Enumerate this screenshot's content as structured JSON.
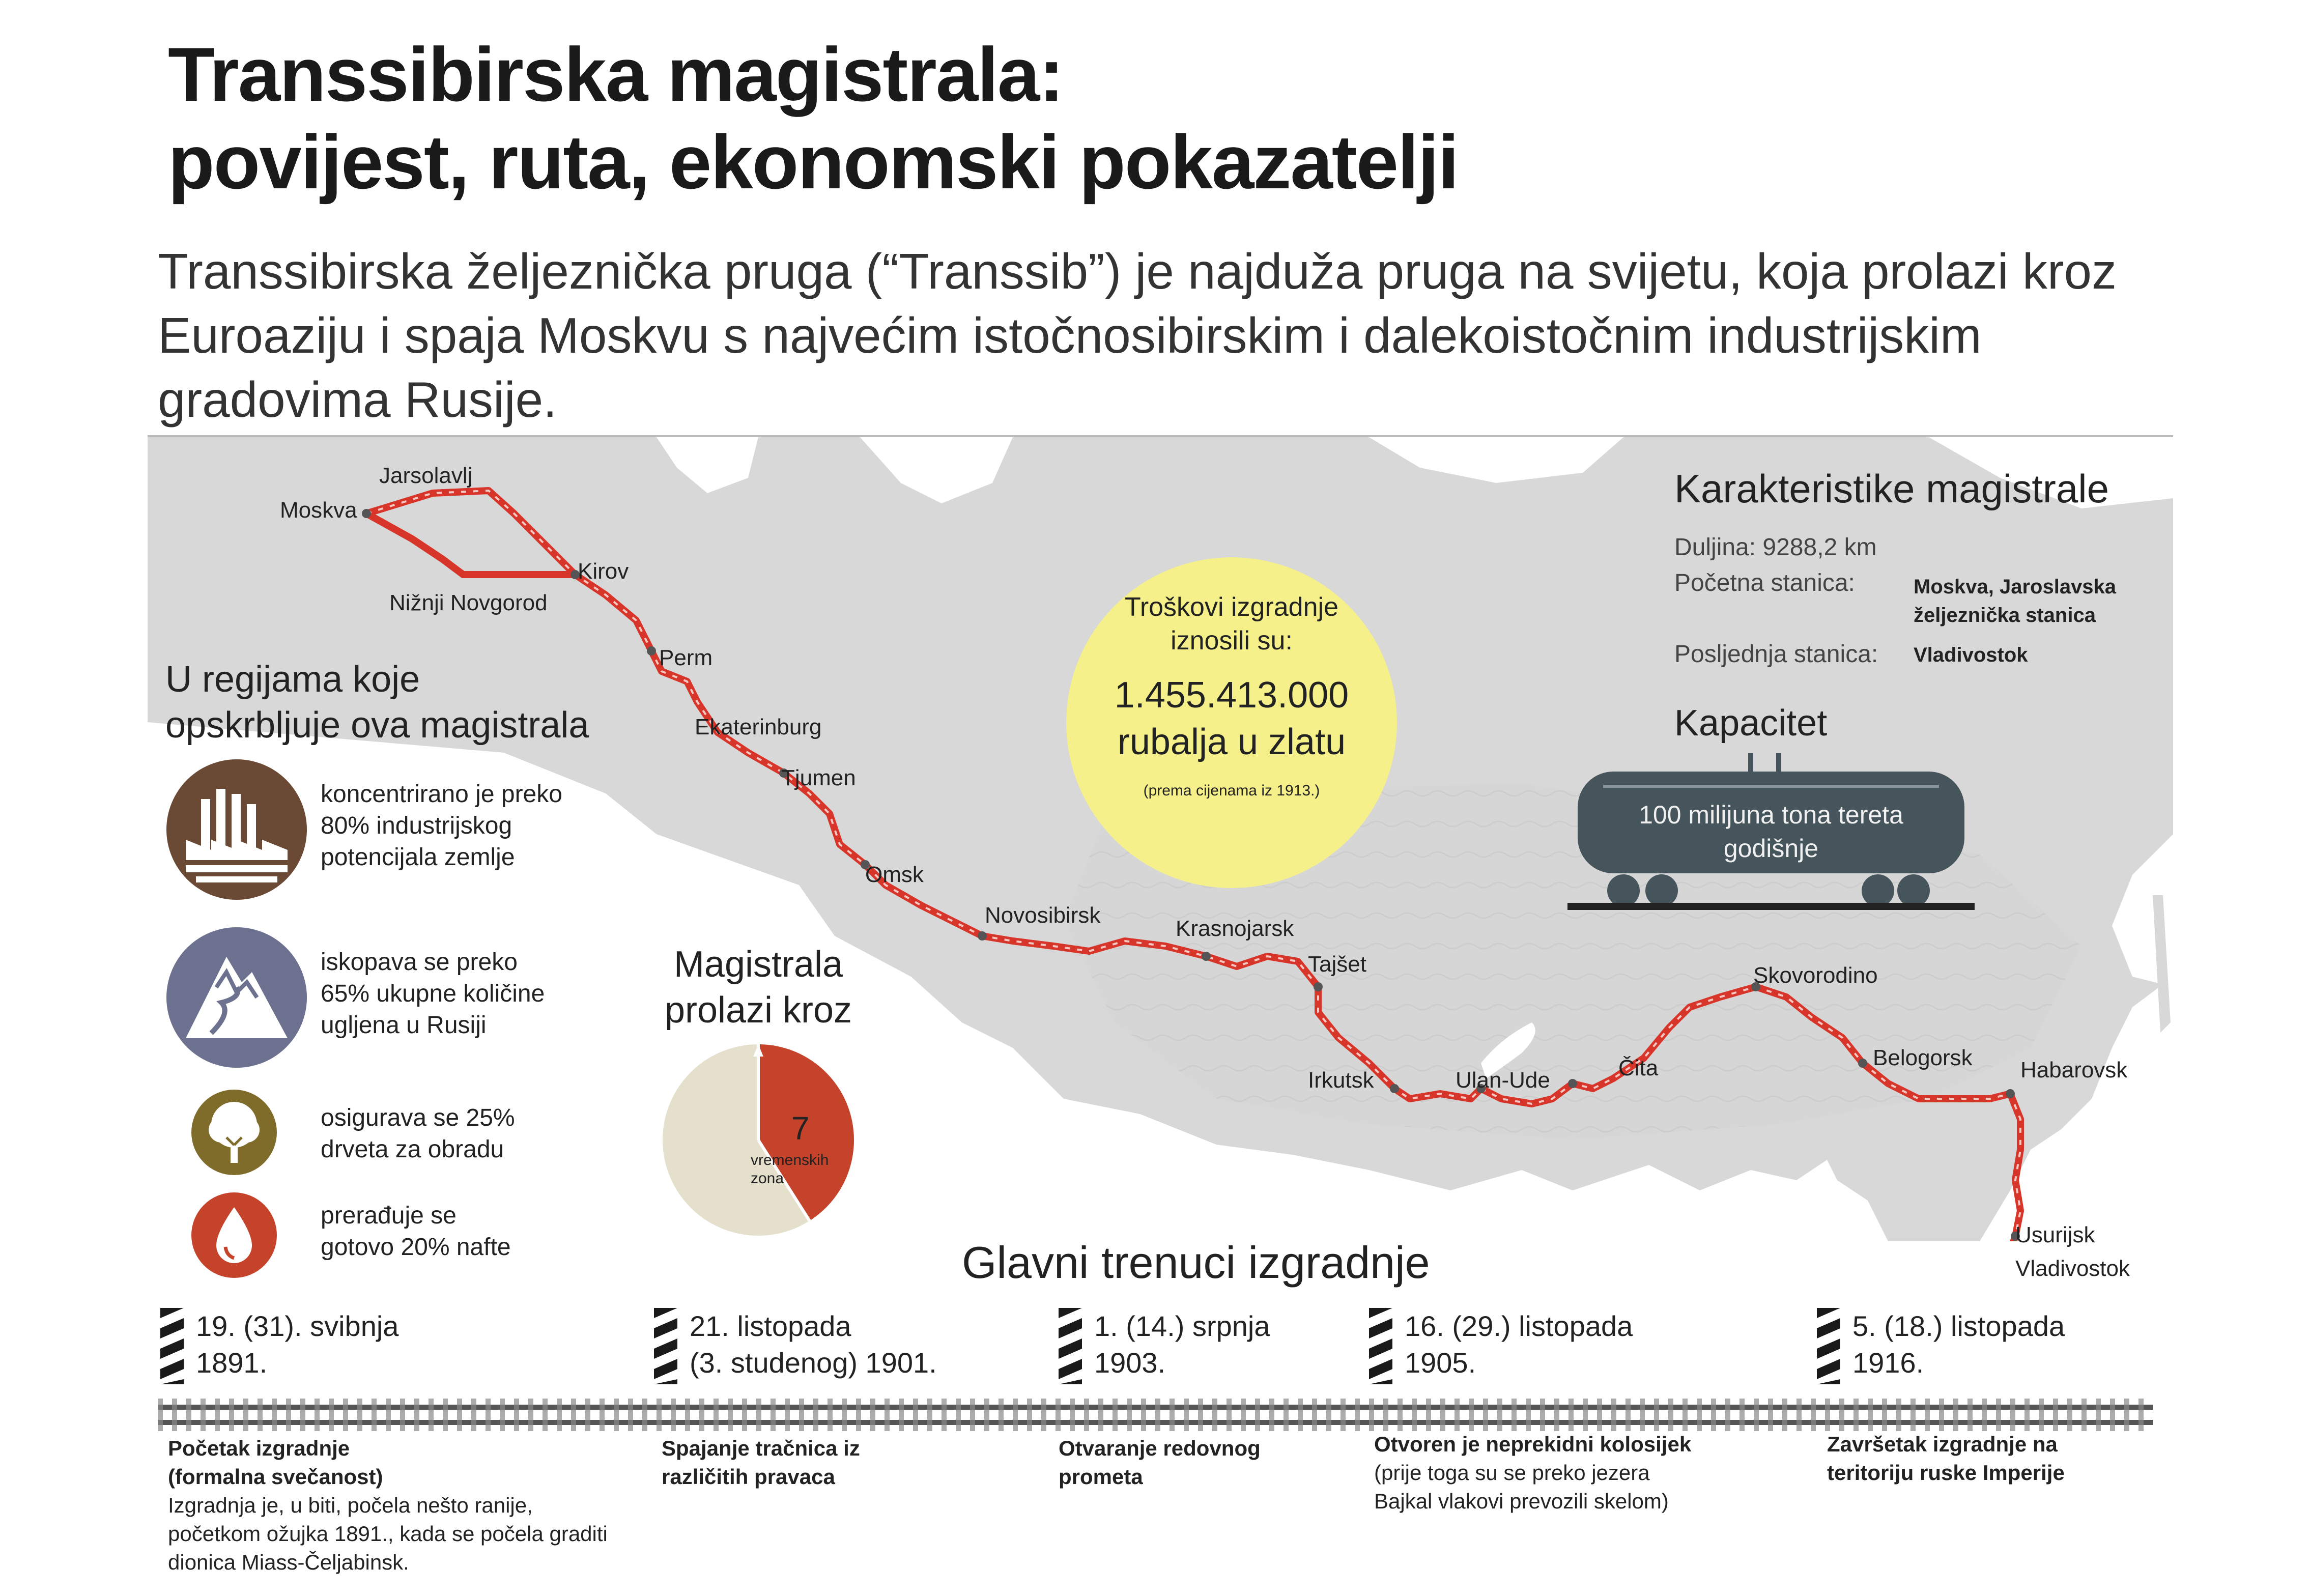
{
  "title": {
    "line1": "Transsibirska magistrala:",
    "line2": "povijest, ruta, ekonomski pokazatelji"
  },
  "intro": "Transsibirska željeznička pruga (“Transsib”) je najduža pruga na svijetu, koja prolazi kroz Euroaziju i spaja Moskvu s najvećim istočnosibirskim i dalekoistočnim industrijskim gradovima Rusije.",
  "cities": {
    "moskva": "Moskva",
    "jarsolavlj": "Jarsolavlj",
    "nizhni": "Nižnji Novgorod",
    "kirov": "Kirov",
    "perm": "Perm",
    "ekaterinburg": "Ekaterinburg",
    "tjumen": "Tjumen",
    "omsk": "Omsk",
    "novosibirsk": "Novosibirsk",
    "krasnojarsk": "Krasnojarsk",
    "tajset": "Tajšet",
    "irkutsk": "Irkutsk",
    "ulanude": "Ulan-Ude",
    "cita": "Čita",
    "skovorodino": "Skovorodino",
    "belogorsk": "Belogorsk",
    "habarovsk": "Habarovsk",
    "usurijsk": "Usurijsk",
    "vladivostok": "Vladivostok"
  },
  "regions": {
    "title_line1": "U regijama koje",
    "title_line2": "opskrbljuje ova magistrala",
    "items": [
      {
        "icon": "factory-icon",
        "color": "#6b4a35",
        "lines": [
          "koncentrirano je preko",
          "80% industrijskog",
          "potencijala zemlje"
        ]
      },
      {
        "icon": "mountain-icon",
        "color": "#6d7190",
        "lines": [
          "iskopava se preko",
          "65% ukupne količine",
          "ugljena u Rusiji"
        ]
      },
      {
        "icon": "tree-icon",
        "color": "#7f6c2a",
        "lines": [
          "osigurava se 25%",
          "drveta za obradu"
        ]
      },
      {
        "icon": "oil-drop-icon",
        "color": "#c4432a",
        "lines": [
          "prerađuje se",
          "gotovo 20% nafte"
        ]
      }
    ]
  },
  "cost": {
    "line1": "Troškovi izgradnje",
    "line2": "iznosili su:",
    "amount": "1.455.413.000",
    "currency": "rubalja u zlatu",
    "note": "(prema cijenama iz 1913.)",
    "color": "#f5f08a"
  },
  "timezones": {
    "title_line1": "Magistrala",
    "title_line2": "prolazi kroz",
    "value": "7",
    "label_line1": "vremenskih",
    "label_line2": "zona",
    "color_main": "#c4432a",
    "color_rest": "#e4e0cc"
  },
  "characteristics": {
    "title": "Karakteristike magistrale",
    "length_label": "Duljina: 9288,2 km",
    "start_label": "Početna stanica:",
    "start_value_line1": "Moskva, Jaroslavska",
    "start_value_line2": "željeznička stanica",
    "end_label": "Posljednja stanica:",
    "end_value": "Vladivostok"
  },
  "capacity": {
    "title": "Kapacitet",
    "line1": "100 milijuna tona tereta",
    "line2": "godišnje",
    "tank_color": "#46545c"
  },
  "milestones": {
    "title": "Glavni trenuci izgradnje",
    "items": [
      {
        "date_line1": "19. (31). svibnja",
        "date_line2": "1891.",
        "bold_line1": "Početak izgradnje",
        "bold_line2": "(formalna svečanost)",
        "text_lines": [
          "Izgradnja je, u biti, počela nešto ranije,",
          "početkom ožujka 1891., kada se počela graditi",
          "dionica Miass-Čeljabinsk."
        ]
      },
      {
        "date_line1": "21. listopada",
        "date_line2": "(3. studenog) 1901.",
        "bold_line1": "Spajanje tračnica iz",
        "bold_line2": "različitih pravaca",
        "text_lines": []
      },
      {
        "date_line1": "1. (14.) srpnja",
        "date_line2": "1903.",
        "bold_line1": "Otvaranje redovnog",
        "bold_line2": "prometa",
        "text_lines": []
      },
      {
        "date_line1": "16. (29.) listopada",
        "date_line2": "1905.",
        "bold_line1": "Otvoren je neprekidni kolosijek",
        "bold_line2": "",
        "text_lines": [
          "(prije toga su se preko jezera",
          "Bajkal vlakovi prevozili skelom)"
        ]
      },
      {
        "date_line1": "5. (18.) listopada",
        "date_line2": "1916.",
        "bold_line1": "Završetak izgradnje na",
        "bold_line2": "teritoriju ruske Imperije",
        "text_lines": []
      }
    ]
  },
  "colors": {
    "route": "#d8352a",
    "land": "#d9d9d9",
    "water": "#ffffff"
  }
}
